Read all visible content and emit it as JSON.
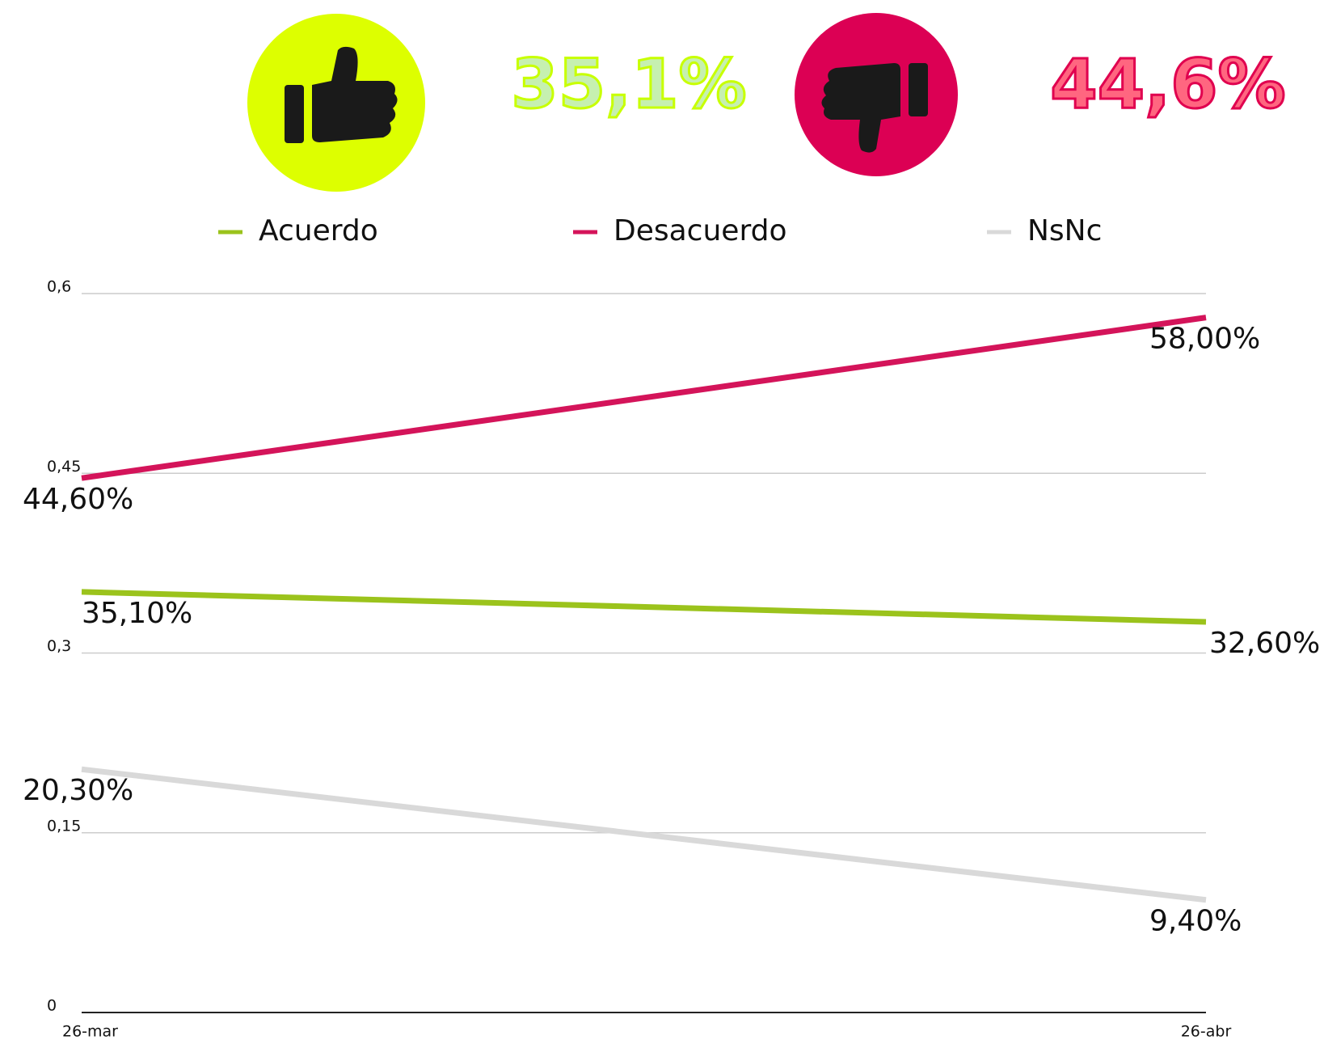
{
  "header": {
    "stats": [
      "35,1%",
      "44,6%"
    ]
  },
  "chart_data": {
    "type": "line",
    "categories": [
      "26-mar",
      "26-abr"
    ],
    "series": [
      {
        "name": "Acuerdo",
        "color": "#9bc31c",
        "values": [
          0.351,
          0.326
        ],
        "value_labels": [
          "35,10%",
          "32,60%"
        ]
      },
      {
        "name": "Desacuerdo",
        "color": "#d4145a",
        "values": [
          0.446,
          0.58
        ],
        "value_labels": [
          "44,60%",
          "58,00%"
        ]
      },
      {
        "name": "NsNc",
        "color": "#d9d9d9",
        "values": [
          0.203,
          0.094
        ],
        "value_labels": [
          "20,30%",
          "9,40%"
        ]
      }
    ],
    "ylim": [
      0,
      0.6
    ],
    "yticks": [
      0,
      {
        "value": 0.15,
        "label": "0,15"
      },
      {
        "value": 0.3,
        "label": "0,3"
      },
      {
        "value": 0.45,
        "label": "0,45"
      },
      {
        "value": 0.6,
        "label": "0,6"
      }
    ],
    "grid": true
  }
}
